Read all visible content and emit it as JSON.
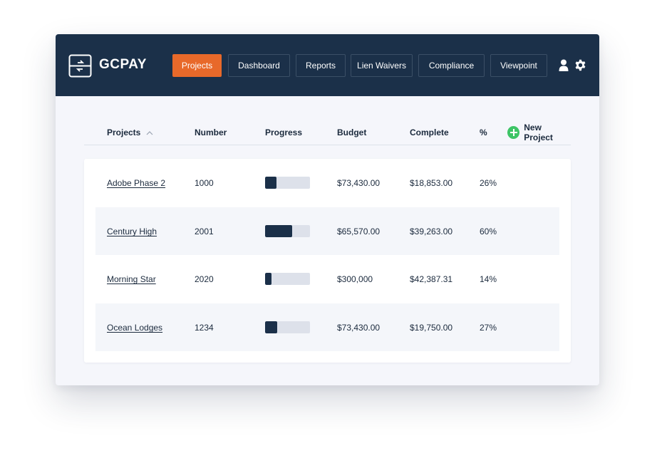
{
  "brand": {
    "name": "GCPAY"
  },
  "nav": {
    "items": [
      {
        "label": "Projects",
        "active": true
      },
      {
        "label": "Dashboard",
        "active": false
      },
      {
        "label": "Reports",
        "active": false
      },
      {
        "label": "Lien Waivers",
        "active": false
      },
      {
        "label": "Compliance",
        "active": false
      },
      {
        "label": "Viewpoint",
        "active": false
      }
    ],
    "icons": [
      "user-icon",
      "gear-icon"
    ]
  },
  "table": {
    "headers": {
      "projects": "Projects",
      "number": "Number",
      "progress": "Progress",
      "budget": "Budget",
      "complete": "Complete",
      "percent": "%"
    },
    "sort_icon": "chevron-up-icon",
    "new_project_label": "New Project",
    "rows": [
      {
        "name": "Adobe Phase 2",
        "number": "1000",
        "progress": 0.26,
        "budget": "$73,430.00",
        "complete": "$18,853.00",
        "percent": "26%"
      },
      {
        "name": "Century High",
        "number": "2001",
        "progress": 0.6,
        "budget": "$65,570.00",
        "complete": "$39,263.00",
        "percent": "60%"
      },
      {
        "name": "Morning Star",
        "number": "2020",
        "progress": 0.14,
        "budget": "$300,000",
        "complete": "$42,387.31",
        "percent": "14%"
      },
      {
        "name": "Ocean Lodges",
        "number": "1234",
        "progress": 0.27,
        "budget": "$73,430.00",
        "complete": "$19,750.00",
        "percent": "27%"
      }
    ]
  },
  "colors": {
    "topbar": "#1b3049",
    "accent": "#e8692a",
    "add": "#3dc466",
    "progress_fill": "#1b3049",
    "progress_track": "#dde1ea"
  }
}
